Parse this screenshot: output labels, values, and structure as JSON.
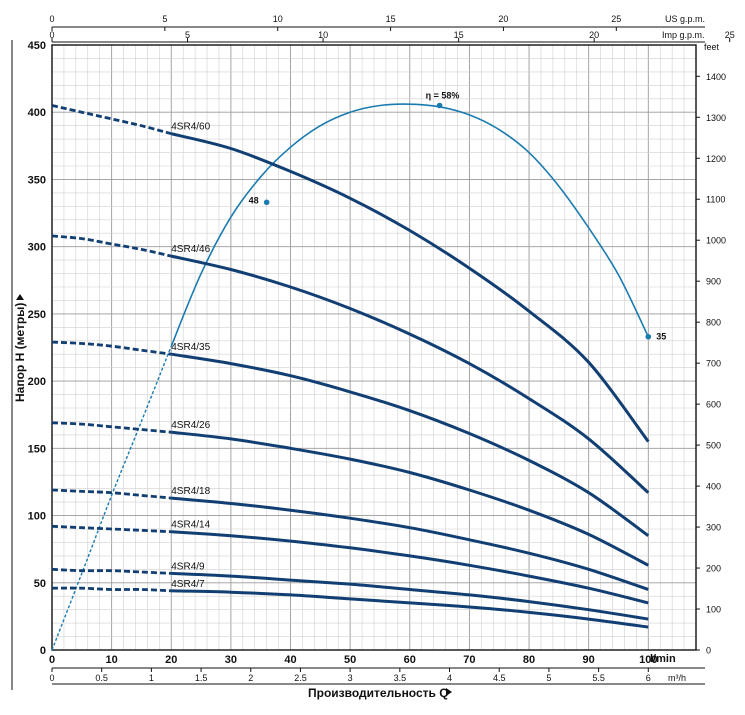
{
  "chart_data": {
    "type": "line",
    "title": "",
    "xlabel": "Производительность Q",
    "ylabel": "Напор H (метры)",
    "x_unit_main": "l/min",
    "x_unit_m3h": "m³/h",
    "x_unit_us": "US g.p.m.",
    "x_unit_imp": "Imp g.p.m.",
    "y_unit_feet": "feet",
    "xlim": [
      0,
      108
    ],
    "ylim": [
      0,
      450
    ],
    "x_ticks_lmin": [
      0,
      10,
      20,
      30,
      40,
      50,
      60,
      70,
      80,
      90,
      100
    ],
    "x_ticks_m3h": [
      "0",
      "0.5",
      "1",
      "1.5",
      "2",
      "2.5",
      "3",
      "3.5",
      "4",
      "4.5",
      "5",
      "5.5",
      "6"
    ],
    "x_ticks_us": [
      "0",
      "5",
      "10",
      "15",
      "20",
      "25"
    ],
    "x_ticks_imp": [
      "0",
      "5",
      "10",
      "15",
      "20",
      "25"
    ],
    "y_ticks": [
      0,
      50,
      100,
      150,
      200,
      250,
      300,
      350,
      400,
      450
    ],
    "y_ticks_feet": [
      0,
      100,
      200,
      300,
      400,
      500,
      600,
      700,
      800,
      900,
      1000,
      1100,
      1200,
      1300,
      1400
    ],
    "grid": true,
    "series": [
      {
        "name": "4SR4/60",
        "dashed_x": [
          0,
          5,
          10,
          15,
          20
        ],
        "dashed_y": [
          405,
          400,
          395,
          390,
          384
        ],
        "x": [
          20,
          30,
          40,
          50,
          60,
          70,
          80,
          90,
          100
        ],
        "y": [
          384,
          373,
          356,
          336,
          312,
          284,
          252,
          214,
          155
        ]
      },
      {
        "name": "4SR4/46",
        "dashed_x": [
          0,
          5,
          10,
          15,
          20
        ],
        "dashed_y": [
          308,
          306,
          302,
          298,
          293
        ],
        "x": [
          20,
          30,
          40,
          50,
          60,
          70,
          80,
          90,
          100
        ],
        "y": [
          293,
          283,
          270,
          254,
          235,
          213,
          187,
          157,
          117
        ]
      },
      {
        "name": "4SR4/35",
        "dashed_x": [
          0,
          5,
          10,
          15,
          20
        ],
        "dashed_y": [
          229,
          228,
          226,
          223,
          220
        ],
        "x": [
          20,
          30,
          40,
          50,
          60,
          70,
          80,
          90,
          100
        ],
        "y": [
          220,
          213,
          204,
          192,
          178,
          161,
          141,
          117,
          85
        ]
      },
      {
        "name": "4SR4/26",
        "dashed_x": [
          0,
          5,
          10,
          15,
          20
        ],
        "dashed_y": [
          169,
          168,
          166,
          164,
          162
        ],
        "x": [
          20,
          30,
          40,
          50,
          60,
          70,
          80,
          90,
          100
        ],
        "y": [
          162,
          157,
          150,
          142,
          132,
          119,
          104,
          86,
          63
        ]
      },
      {
        "name": "4SR4/18",
        "dashed_x": [
          0,
          5,
          10,
          15,
          20
        ],
        "dashed_y": [
          119,
          118,
          117,
          115,
          113
        ],
        "x": [
          20,
          30,
          40,
          50,
          60,
          70,
          80,
          90,
          100
        ],
        "y": [
          113,
          109,
          104,
          98,
          91,
          82,
          72,
          60,
          45
        ]
      },
      {
        "name": "4SR4/14",
        "dashed_x": [
          0,
          5,
          10,
          15,
          20
        ],
        "dashed_y": [
          92,
          91,
          90,
          89,
          88
        ],
        "x": [
          20,
          30,
          40,
          50,
          60,
          70,
          80,
          90,
          100
        ],
        "y": [
          88,
          85,
          81,
          76,
          70,
          63,
          55,
          46,
          35
        ]
      },
      {
        "name": "4SR4/9",
        "dashed_x": [
          0,
          5,
          10,
          15,
          20
        ],
        "dashed_y": [
          60,
          59,
          59,
          58,
          57
        ],
        "x": [
          20,
          30,
          40,
          50,
          60,
          70,
          80,
          90,
          100
        ],
        "y": [
          57,
          55,
          52,
          49,
          45,
          41,
          36,
          30,
          23
        ]
      },
      {
        "name": "4SR4/7",
        "dashed_x": [
          0,
          5,
          10,
          15,
          20
        ],
        "dashed_y": [
          46,
          46,
          45,
          45,
          44
        ],
        "x": [
          20,
          30,
          40,
          50,
          60,
          70,
          80,
          90,
          100
        ],
        "y": [
          44,
          43,
          41,
          38,
          35,
          32,
          28,
          23,
          17
        ]
      }
    ],
    "efficiency": {
      "label": "η = 58%",
      "dashed_x": [
        0,
        5,
        10,
        15,
        20
      ],
      "dashed_y": [
        0,
        57,
        115,
        170,
        226
      ],
      "x": [
        20,
        25,
        30,
        35,
        40,
        45,
        50,
        55,
        60,
        65,
        70,
        75,
        80,
        85,
        90,
        95,
        100
      ],
      "y": [
        226,
        280,
        322,
        352,
        374,
        390,
        400,
        405,
        406,
        404,
        398,
        387,
        370,
        345,
        314,
        279,
        233
      ],
      "points": [
        {
          "label": "48",
          "x": 36,
          "y": 333
        },
        {
          "label": "",
          "x": 65,
          "y": 405
        },
        {
          "label": "35",
          "x": 100,
          "y": 233
        }
      ]
    },
    "colors": {
      "curve": "#123f73",
      "efficiency": "#1a7bb0",
      "grid": "#bfbfbf",
      "frame": "#111111"
    }
  }
}
